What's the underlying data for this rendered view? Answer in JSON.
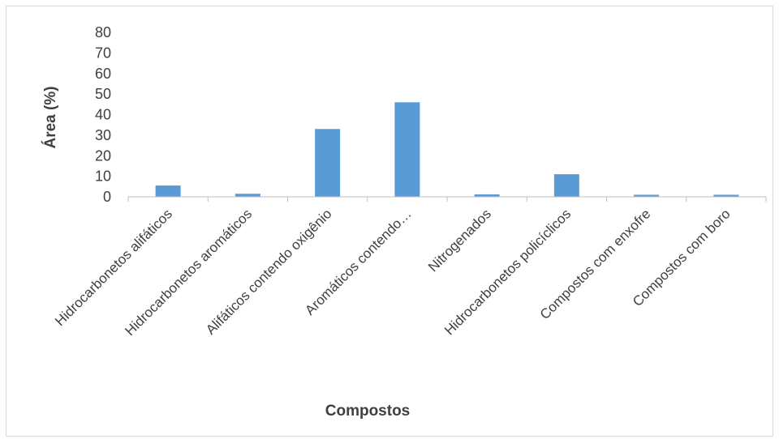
{
  "chart_data": {
    "type": "bar",
    "title": "",
    "xlabel": "Compostos",
    "ylabel": "Área (%)",
    "ylim": [
      0,
      80
    ],
    "yticks": [
      0,
      10,
      20,
      30,
      40,
      50,
      60,
      70,
      80
    ],
    "grid": false,
    "legend": "none",
    "bar_color": "#5b9bd5",
    "categories": [
      "Hidrocarbonetos alifáticos",
      "Hidrocarbonetos aromáticos",
      "Alifáticos contendo oxigênio",
      "Aromáticos contendo…",
      "Nitrogenados",
      "Hidrocarbonetos policíclicos",
      "Compostos com enxofre",
      "Compostos com boro"
    ],
    "values": [
      5.5,
      1.5,
      33,
      46,
      1.2,
      11,
      1,
      1
    ]
  }
}
